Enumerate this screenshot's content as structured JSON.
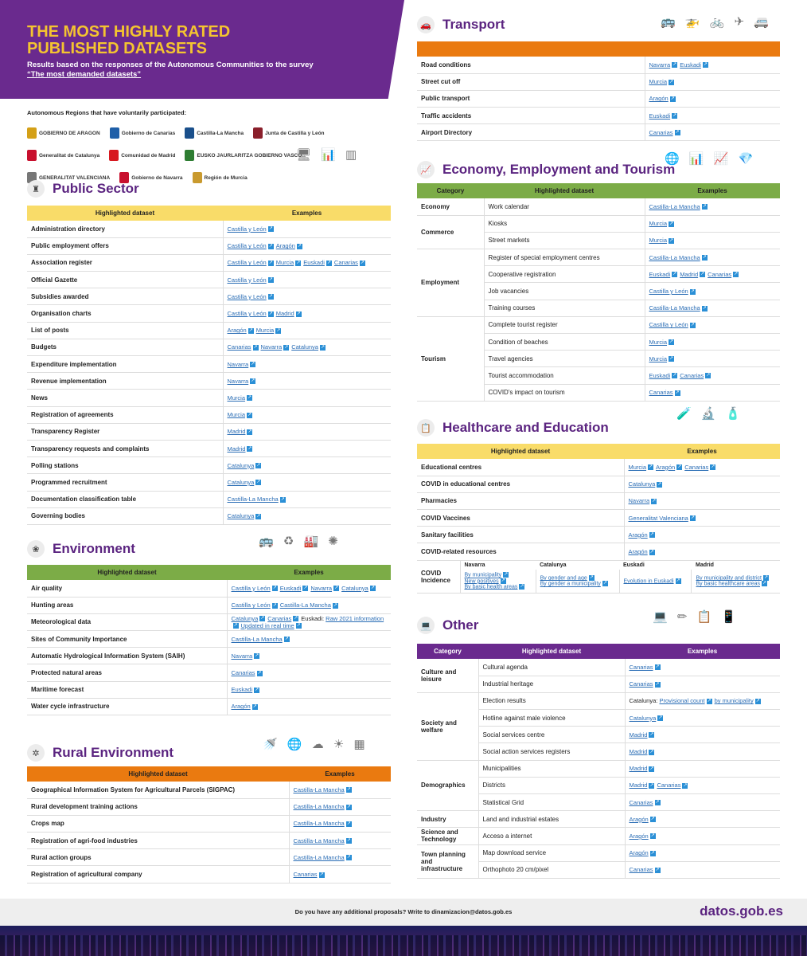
{
  "header": {
    "title": "THE MOST HIGHLY RATED PUBLISHED DATASETS",
    "subtitle": "Results based on the responses of the Autonomous Communities to the survey",
    "survey": "“The most demanded datasets”"
  },
  "regions": {
    "title": "Autonomous Regions that have voluntarily participated:",
    "logos": [
      {
        "name": "GOBIERNO DE ARAGON",
        "color": "#d4a017"
      },
      {
        "name": "Gobierno de Canarias",
        "color": "#1f5fa8"
      },
      {
        "name": "Castilla-La Mancha",
        "color": "#1a4f8b"
      },
      {
        "name": "Junta de Castilla y León",
        "color": "#8a1f2b"
      },
      {
        "name": "Generalitat de Catalunya",
        "color": "#c8102e"
      },
      {
        "name": "Comunidad de Madrid",
        "color": "#d71920"
      },
      {
        "name": "EUSKO JAURLARITZA GOBIERNO VASCO",
        "color": "#2e7d32"
      },
      {
        "name": "GENERALITAT VALENCIANA",
        "color": "#777777"
      },
      {
        "name": "Gobierno de Navarra",
        "color": "#c8102e"
      },
      {
        "name": "Región de Murcia",
        "color": "#c99a2e"
      }
    ]
  },
  "public_sector": {
    "title": "Public Sector",
    "col1": "Highlighted dataset",
    "col2": "Examples",
    "rows": [
      {
        "name": "Administration directory",
        "links": [
          "Castilla y León"
        ]
      },
      {
        "name": "Public employment offers",
        "links": [
          "Castilla y León",
          "Aragón"
        ]
      },
      {
        "name": "Association register",
        "links": [
          "Castilla y León",
          "Murcia",
          "Euskadi",
          "Canarias"
        ]
      },
      {
        "name": "Official Gazette",
        "links": [
          "Castilla y León"
        ]
      },
      {
        "name": "Subsidies awarded",
        "links": [
          "Castilla y León"
        ]
      },
      {
        "name": "Organisation charts",
        "links": [
          "Castilla y León",
          "Madrid"
        ]
      },
      {
        "name": "List of posts",
        "links": [
          "Aragón",
          "Murcia"
        ]
      },
      {
        "name": "Budgets",
        "links": [
          "Canarias",
          "Navarra",
          "Catalunya"
        ]
      },
      {
        "name": "Expenditure implementation",
        "links": [
          "Navarra"
        ]
      },
      {
        "name": "Revenue implementation",
        "links": [
          "Navarra"
        ]
      },
      {
        "name": "News",
        "links": [
          "Murcia"
        ]
      },
      {
        "name": "Registration of agreements",
        "links": [
          "Murcia"
        ]
      },
      {
        "name": "Transparency Register",
        "links": [
          "Madrid"
        ]
      },
      {
        "name": "Transparency requests and complaints",
        "links": [
          "Madrid"
        ]
      },
      {
        "name": "Polling stations",
        "links": [
          "Catalunya"
        ]
      },
      {
        "name": "Programmed recruitment",
        "links": [
          "Catalunya"
        ]
      },
      {
        "name": "Documentation classification table",
        "links": [
          "Castilla-La Mancha"
        ]
      },
      {
        "name": "Governing bodies",
        "links": [
          "Catalunya"
        ]
      }
    ]
  },
  "environment": {
    "title": "Environment",
    "col1": "Highlighted dataset",
    "col2": "Examples",
    "rows": [
      {
        "name": "Air quality",
        "links": [
          "Castilla y León",
          "Euskadi",
          "Navarra",
          "Catalunya"
        ]
      },
      {
        "name": "Hunting areas",
        "links": [
          "Castilla y León",
          "Castilla-La Mancha"
        ]
      },
      {
        "name": "Meteorological data",
        "links": [
          "Catalunya",
          "Canarias"
        ],
        "extra": "Euskadi:",
        "extra_links": [
          "Raw 2021 information",
          "Updated in real time"
        ]
      },
      {
        "name": "Sites of Community Importance",
        "links": [
          "Castilla-La Mancha"
        ]
      },
      {
        "name": "Automatic Hydrological Information System (SAIH)",
        "links": [
          "Navarra"
        ]
      },
      {
        "name": "Protected natural areas",
        "links": [
          "Canarias"
        ]
      },
      {
        "name": "Maritime forecast",
        "links": [
          "Euskadi"
        ]
      },
      {
        "name": "Water cycle infrastructure",
        "links": [
          "Aragón"
        ]
      }
    ]
  },
  "rural": {
    "title": "Rural Environment",
    "col1": "Highlighted dataset",
    "col2": "Examples",
    "rows": [
      {
        "name": "Geographical Information System for Agricultural Parcels (SIGPAC)",
        "links": [
          "Castilla-La Mancha"
        ]
      },
      {
        "name": "Rural development training actions",
        "links": [
          "Castilla-La Mancha"
        ]
      },
      {
        "name": "Crops map",
        "links": [
          "Castilla-La Mancha"
        ]
      },
      {
        "name": "Registration of agri-food industries",
        "links": [
          "Castilla-La Mancha"
        ]
      },
      {
        "name": "Rural action groups",
        "links": [
          "Castilla-La Mancha"
        ]
      },
      {
        "name": "Registration of  agricultural company",
        "links": [
          "Canarias"
        ]
      }
    ]
  },
  "transport": {
    "title": "Transport",
    "rows": [
      {
        "name": "Road conditions",
        "links": [
          "Navarra",
          "Euskadi"
        ]
      },
      {
        "name": "Street cut off",
        "links": [
          "Murcia"
        ]
      },
      {
        "name": "Public transport",
        "links": [
          "Aragón"
        ]
      },
      {
        "name": "Traffic accidents",
        "links": [
          "Euskadi"
        ]
      },
      {
        "name": "Airport Directory",
        "links": [
          "Canarias"
        ]
      }
    ]
  },
  "economy": {
    "title": "Economy, Employment and Tourism",
    "col0": "Category",
    "col1": "Highlighted dataset",
    "col2": "Examples",
    "groups": [
      {
        "category": "Economy",
        "rows": [
          {
            "name": "Work calendar",
            "links": [
              "Castilla-La Mancha"
            ]
          }
        ]
      },
      {
        "category": "Commerce",
        "rows": [
          {
            "name": "Kiosks",
            "links": [
              "Murcia"
            ]
          },
          {
            "name": "Street markets",
            "links": [
              "Murcia"
            ]
          }
        ]
      },
      {
        "category": "Employment",
        "rows": [
          {
            "name": "Register of special employment centres",
            "links": [
              "Castilla-La Mancha"
            ]
          },
          {
            "name": "Cooperative registration",
            "links": [
              "Euskadi",
              "Madrid",
              "Canarias"
            ]
          },
          {
            "name": "Job vacancies",
            "links": [
              "Castilla y León"
            ]
          },
          {
            "name": "Training courses",
            "links": [
              "Castilla-La Mancha"
            ]
          }
        ]
      },
      {
        "category": "Tourism",
        "rows": [
          {
            "name": "Complete tourist register",
            "links": [
              "Castilla y León"
            ]
          },
          {
            "name": "Condition of beaches",
            "links": [
              "Murcia"
            ]
          },
          {
            "name": "Travel agencies",
            "links": [
              "Murcia"
            ]
          },
          {
            "name": "Tourist accommodation",
            "links": [
              "Euskadi",
              "Canarias"
            ]
          },
          {
            "name": "COVID's impact on tourism",
            "links": [
              "Canarias"
            ]
          }
        ]
      }
    ]
  },
  "health": {
    "title": "Healthcare and Education",
    "col1": "Highlighted dataset",
    "col2": "Examples",
    "rows": [
      {
        "name": "Educational centres",
        "links": [
          "Murcia",
          "Aragón",
          "Canarias"
        ]
      },
      {
        "name": "COVID in educational centres",
        "links": [
          "Catalunya"
        ]
      },
      {
        "name": "Pharmacies",
        "links": [
          "Navarra"
        ]
      },
      {
        "name": "COVID Vaccines",
        "links": [
          "Generalitat Valenciana"
        ]
      },
      {
        "name": "Sanitary facilities",
        "links": [
          "Aragón"
        ]
      },
      {
        "name": "COVID-related resources",
        "links": [
          "Aragón"
        ]
      }
    ],
    "covid": {
      "name": "COVID Incidence",
      "cols": [
        {
          "region": "Navarra",
          "links": [
            "By municipality",
            "New positives",
            "By basic health areas"
          ]
        },
        {
          "region": "Catalunya",
          "links": [
            "By gender and age",
            "By gender a municipality"
          ]
        },
        {
          "region": "Euskadi",
          "links": [
            "Evolution in Euskadi"
          ]
        },
        {
          "region": "Madrid",
          "links": [
            "By municipality and district",
            "By basic healthcare areas"
          ]
        }
      ]
    }
  },
  "other": {
    "title": "Other",
    "col0": "Category",
    "col1": "Highlighted dataset",
    "col2": "Examples",
    "groups": [
      {
        "category": "Culture and leisure",
        "rows": [
          {
            "name": "Cultural agenda",
            "links": [
              "Canarias"
            ]
          },
          {
            "name": "Industrial heritage",
            "links": [
              "Canarias"
            ]
          }
        ]
      },
      {
        "category": "Society and welfare",
        "rows": [
          {
            "name": "Election results",
            "prefix": "Catalunya:",
            "links": [
              "Provisional count",
              "by municipality"
            ]
          },
          {
            "name": "Hotline against male violence",
            "links": [
              "Catalunya"
            ]
          },
          {
            "name": "Social services centre",
            "links": [
              "Madrid"
            ]
          },
          {
            "name": "Social action services registers",
            "links": [
              "Madrid"
            ]
          }
        ]
      },
      {
        "category": "Demographics",
        "rows": [
          {
            "name": "Municipalities",
            "links": [
              "Madrid"
            ]
          },
          {
            "name": "Districts",
            "links": [
              "Madrid",
              "Canarias"
            ]
          },
          {
            "name": "Statistical Grid",
            "links": [
              "Canarias"
            ]
          }
        ]
      },
      {
        "category": "Industry",
        "rows": [
          {
            "name": "Land and industrial estates",
            "links": [
              "Aragón"
            ]
          }
        ]
      },
      {
        "category": "Science and Technology",
        "rows": [
          {
            "name": "Acceso a internet",
            "links": [
              "Aragón"
            ]
          }
        ]
      },
      {
        "category": "Town planning and infrastructure",
        "rows": [
          {
            "name": "Map download service",
            "links": [
              "Aragón"
            ]
          },
          {
            "name": "Orthophoto 20 cm/pixel",
            "links": [
              "Canarias"
            ]
          }
        ]
      }
    ]
  },
  "footer": {
    "question": "Do you have any additional proposals? Write to dinamizacion@datos.gob.es",
    "brand": "datos.gob.es"
  }
}
